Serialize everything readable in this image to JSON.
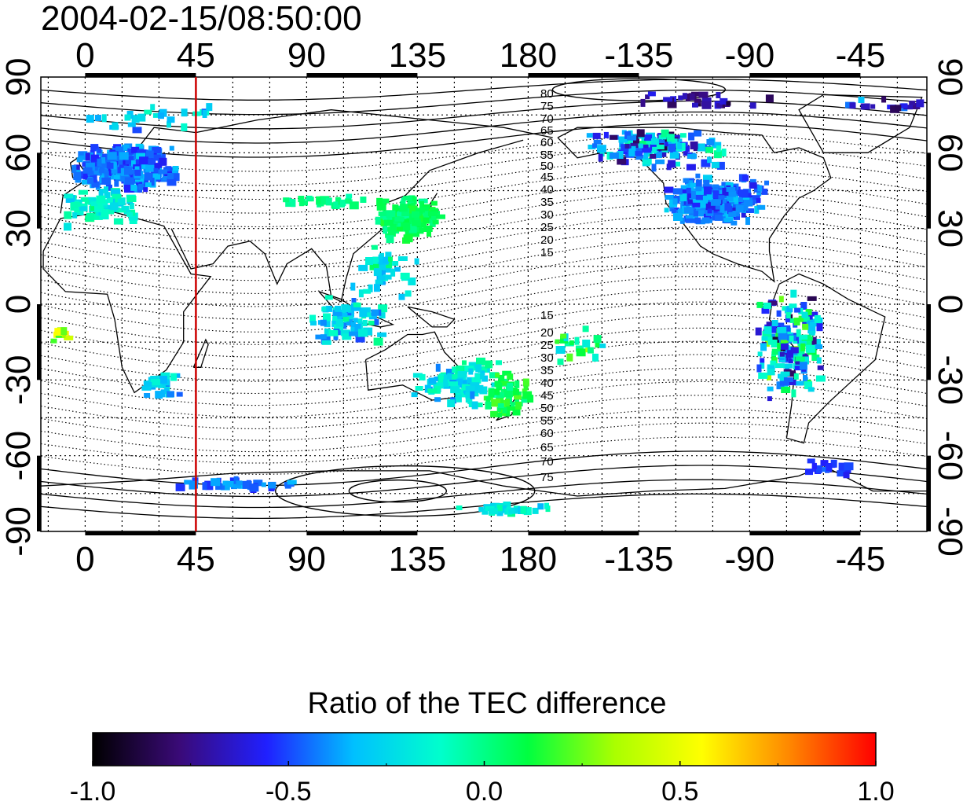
{
  "title": "2004-02-15/08:50:00",
  "map": {
    "lon_ticks_labels": [
      "0",
      "45",
      "90",
      "135",
      "180",
      "-135",
      "-90",
      "-45"
    ],
    "lon_ticks_values": [
      0,
      45,
      90,
      135,
      180,
      225,
      270,
      315
    ],
    "lat_ticks_labels": [
      "90",
      "60",
      "30",
      "0",
      "-30",
      "-60",
      "-90"
    ],
    "lat_ticks_values": [
      90,
      60,
      30,
      0,
      -30,
      -60,
      -90
    ],
    "lon_range": [
      -18,
      342
    ],
    "lat_range": [
      -90,
      90
    ],
    "marker_longitude": 45,
    "marker_color": "#cc0000",
    "contour_labels_north": [
      "80",
      "75",
      "70",
      "65",
      "60",
      "55",
      "50",
      "45",
      "40",
      "35",
      "30",
      "25",
      "20",
      "15"
    ],
    "contour_labels_south": [
      "15",
      "20",
      "25",
      "30",
      "35",
      "40",
      "45",
      "50",
      "55",
      "60",
      "65",
      "70",
      "75"
    ]
  },
  "colorbar": {
    "title": "Ratio of the TEC difference",
    "tick_labels": [
      "-1.0",
      "-0.5",
      "0.0",
      "0.5",
      "1.0"
    ],
    "range": [
      -1.0,
      1.0
    ],
    "colors": [
      "#000000",
      "#3a0a78",
      "#2020ff",
      "#00c0ff",
      "#00ffcc",
      "#00ff40",
      "#aaff00",
      "#ffff00",
      "#ff8800",
      "#ff0000"
    ]
  }
}
